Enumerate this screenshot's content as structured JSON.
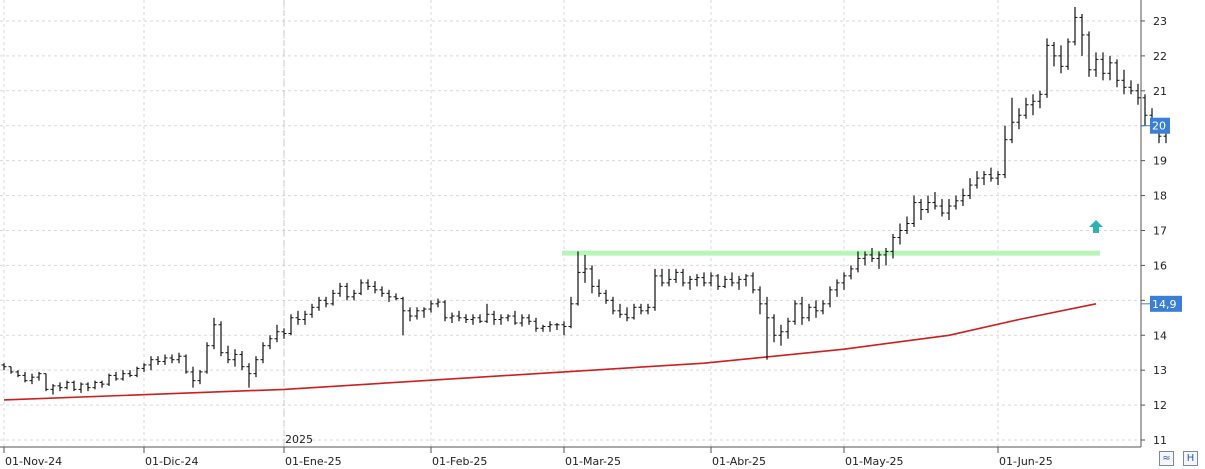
{
  "chart_data": {
    "type": "ohlc",
    "title": "",
    "xlabel": "",
    "ylabel": "",
    "ylim": [
      10.8,
      23.6
    ],
    "y_ticks": [
      11,
      12,
      13,
      14,
      15,
      16,
      17,
      18,
      19,
      20,
      21,
      22,
      23
    ],
    "x_ticks": [
      "01-Nov-24",
      "01-Dic-24",
      "01-Ene-25",
      "01-Feb-25",
      "01-Mar-25",
      "01-Abr-25",
      "01-May-25",
      "01-Jun-25"
    ],
    "year_marker": {
      "label": "2025",
      "at": "01-Ene-25"
    },
    "grid": true,
    "axis_side": "right",
    "price_tags": [
      {
        "label": "20",
        "value": 20.0,
        "color": "#3a7fd5"
      },
      {
        "label": "14,9",
        "value": 14.9,
        "color": "#3a7fd5"
      }
    ],
    "resistance_line": {
      "value": 16.35,
      "from_bar": 80,
      "to_bar": 156,
      "color": "#b8f5b8"
    },
    "moving_average": {
      "color": "#cc1f1f",
      "points": [
        [
          0,
          12.15
        ],
        [
          40,
          12.45
        ],
        [
          80,
          12.95
        ],
        [
          100,
          13.2
        ],
        [
          120,
          13.6
        ],
        [
          135,
          14.0
        ],
        [
          145,
          14.45
        ],
        [
          156,
          14.9
        ]
      ]
    },
    "signal_arrow": {
      "direction": "up",
      "bar": 155,
      "value": 17.1,
      "color": "#2bb3b3"
    },
    "bars": [
      [
        13.15,
        13.2,
        13.0,
        13.1
      ],
      [
        13.1,
        13.1,
        12.9,
        12.95
      ],
      [
        12.95,
        13.0,
        12.8,
        12.85
      ],
      [
        12.85,
        12.95,
        12.65,
        12.7
      ],
      [
        12.7,
        12.9,
        12.6,
        12.8
      ],
      [
        12.8,
        12.95,
        12.7,
        12.9
      ],
      [
        12.9,
        12.9,
        12.4,
        12.45
      ],
      [
        12.45,
        12.6,
        12.3,
        12.55
      ],
      [
        12.55,
        12.65,
        12.4,
        12.5
      ],
      [
        12.5,
        12.7,
        12.45,
        12.65
      ],
      [
        12.65,
        12.7,
        12.4,
        12.45
      ],
      [
        12.45,
        12.65,
        12.35,
        12.6
      ],
      [
        12.6,
        12.65,
        12.4,
        12.5
      ],
      [
        12.5,
        12.7,
        12.45,
        12.65
      ],
      [
        12.65,
        12.7,
        12.5,
        12.6
      ],
      [
        12.6,
        12.9,
        12.55,
        12.85
      ],
      [
        12.85,
        12.95,
        12.7,
        12.75
      ],
      [
        12.75,
        13.0,
        12.7,
        12.9
      ],
      [
        12.9,
        13.0,
        12.8,
        12.85
      ],
      [
        12.85,
        13.1,
        12.8,
        13.05
      ],
      [
        13.05,
        13.2,
        12.95,
        13.15
      ],
      [
        13.15,
        13.4,
        13.0,
        13.3
      ],
      [
        13.3,
        13.4,
        13.15,
        13.25
      ],
      [
        13.25,
        13.45,
        13.15,
        13.35
      ],
      [
        13.35,
        13.45,
        13.2,
        13.3
      ],
      [
        13.3,
        13.5,
        13.2,
        13.4
      ],
      [
        13.4,
        13.45,
        12.9,
        12.95
      ],
      [
        12.95,
        13.1,
        12.5,
        12.7
      ],
      [
        12.7,
        13.0,
        12.6,
        12.95
      ],
      [
        12.95,
        13.8,
        12.9,
        13.7
      ],
      [
        13.7,
        14.5,
        13.6,
        14.3
      ],
      [
        14.3,
        14.4,
        13.4,
        13.5
      ],
      [
        13.5,
        13.7,
        13.2,
        13.3
      ],
      [
        13.3,
        13.6,
        13.1,
        13.45
      ],
      [
        13.45,
        13.55,
        13.0,
        13.1
      ],
      [
        13.1,
        13.2,
        12.5,
        12.9
      ],
      [
        12.9,
        13.4,
        12.8,
        13.3
      ],
      [
        13.3,
        13.8,
        13.2,
        13.7
      ],
      [
        13.7,
        14.0,
        13.6,
        13.9
      ],
      [
        13.9,
        14.3,
        13.8,
        14.1
      ],
      [
        14.1,
        14.2,
        13.9,
        14.05
      ],
      [
        14.05,
        14.6,
        14.0,
        14.5
      ],
      [
        14.5,
        14.7,
        14.3,
        14.45
      ],
      [
        14.45,
        14.7,
        14.3,
        14.6
      ],
      [
        14.6,
        14.9,
        14.5,
        14.8
      ],
      [
        14.8,
        15.1,
        14.7,
        15.0
      ],
      [
        15.0,
        15.1,
        14.8,
        14.9
      ],
      [
        14.9,
        15.3,
        14.85,
        15.2
      ],
      [
        15.2,
        15.5,
        15.1,
        15.4
      ],
      [
        15.4,
        15.5,
        15.0,
        15.1
      ],
      [
        15.1,
        15.3,
        15.0,
        15.2
      ],
      [
        15.2,
        15.6,
        15.15,
        15.5
      ],
      [
        15.5,
        15.6,
        15.3,
        15.4
      ],
      [
        15.4,
        15.55,
        15.2,
        15.3
      ],
      [
        15.3,
        15.4,
        15.1,
        15.2
      ],
      [
        15.2,
        15.3,
        14.95,
        15.1
      ],
      [
        15.1,
        15.2,
        15.0,
        15.05
      ],
      [
        15.05,
        15.1,
        14.0,
        14.7
      ],
      [
        14.7,
        14.8,
        14.4,
        14.55
      ],
      [
        14.55,
        14.8,
        14.45,
        14.7
      ],
      [
        14.7,
        14.8,
        14.5,
        14.75
      ],
      [
        14.75,
        15.0,
        14.65,
        14.9
      ],
      [
        14.9,
        15.05,
        14.8,
        14.95
      ],
      [
        14.95,
        15.0,
        14.4,
        14.5
      ],
      [
        14.5,
        14.65,
        14.35,
        14.55
      ],
      [
        14.55,
        14.7,
        14.4,
        14.5
      ],
      [
        14.5,
        14.6,
        14.35,
        14.45
      ],
      [
        14.45,
        14.6,
        14.3,
        14.5
      ],
      [
        14.5,
        14.6,
        14.35,
        14.4
      ],
      [
        14.4,
        14.9,
        14.35,
        14.6
      ],
      [
        14.6,
        14.7,
        14.3,
        14.45
      ],
      [
        14.45,
        14.6,
        14.3,
        14.5
      ],
      [
        14.5,
        14.6,
        14.4,
        14.55
      ],
      [
        14.55,
        14.7,
        14.3,
        14.35
      ],
      [
        14.35,
        14.6,
        14.25,
        14.5
      ],
      [
        14.5,
        14.6,
        14.3,
        14.4
      ],
      [
        14.4,
        14.5,
        14.1,
        14.2
      ],
      [
        14.2,
        14.3,
        14.1,
        14.25
      ],
      [
        14.25,
        14.4,
        14.1,
        14.3
      ],
      [
        14.3,
        14.35,
        14.15,
        14.3
      ],
      [
        14.3,
        14.4,
        14.0,
        14.25
      ],
      [
        14.25,
        15.1,
        14.2,
        14.9
      ],
      [
        14.9,
        16.4,
        14.85,
        15.8
      ],
      [
        15.8,
        16.3,
        15.5,
        15.9
      ],
      [
        15.9,
        16.0,
        15.2,
        15.4
      ],
      [
        15.4,
        15.6,
        15.1,
        15.2
      ],
      [
        15.2,
        15.3,
        14.9,
        15.0
      ],
      [
        15.0,
        15.1,
        14.6,
        14.7
      ],
      [
        14.7,
        14.9,
        14.5,
        14.6
      ],
      [
        14.6,
        14.8,
        14.4,
        14.5
      ],
      [
        14.5,
        14.9,
        14.45,
        14.8
      ],
      [
        14.8,
        14.9,
        14.6,
        14.7
      ],
      [
        14.7,
        14.9,
        14.6,
        14.8
      ],
      [
        14.8,
        15.9,
        14.7,
        15.7
      ],
      [
        15.7,
        15.9,
        15.4,
        15.5
      ],
      [
        15.5,
        15.9,
        15.4,
        15.6
      ],
      [
        15.6,
        15.9,
        15.5,
        15.8
      ],
      [
        15.8,
        15.9,
        15.4,
        15.5
      ],
      [
        15.5,
        15.7,
        15.3,
        15.6
      ],
      [
        15.6,
        15.75,
        15.4,
        15.65
      ],
      [
        15.65,
        15.8,
        15.4,
        15.5
      ],
      [
        15.5,
        15.8,
        15.4,
        15.7
      ],
      [
        15.7,
        15.75,
        15.3,
        15.4
      ],
      [
        15.4,
        15.7,
        15.35,
        15.6
      ],
      [
        15.6,
        15.8,
        15.4,
        15.5
      ],
      [
        15.5,
        15.7,
        15.3,
        15.6
      ],
      [
        15.6,
        15.75,
        15.4,
        15.7
      ],
      [
        15.7,
        15.8,
        15.2,
        15.3
      ],
      [
        15.3,
        15.4,
        14.6,
        14.9
      ],
      [
        14.9,
        15.1,
        13.3,
        14.5
      ],
      [
        14.5,
        14.6,
        13.8,
        14.0
      ],
      [
        14.0,
        14.3,
        13.7,
        14.1
      ],
      [
        14.1,
        14.5,
        13.9,
        14.4
      ],
      [
        14.4,
        15.0,
        14.3,
        14.9
      ],
      [
        14.9,
        15.1,
        14.3,
        14.5
      ],
      [
        14.5,
        14.9,
        14.4,
        14.8
      ],
      [
        14.8,
        15.0,
        14.5,
        14.7
      ],
      [
        14.7,
        15.0,
        14.6,
        14.9
      ],
      [
        14.9,
        15.4,
        14.8,
        15.3
      ],
      [
        15.3,
        15.6,
        15.1,
        15.5
      ],
      [
        15.5,
        15.8,
        15.3,
        15.7
      ],
      [
        15.7,
        16.0,
        15.6,
        15.9
      ],
      [
        15.9,
        16.4,
        15.8,
        16.2
      ],
      [
        16.2,
        16.4,
        16.0,
        16.3
      ],
      [
        16.3,
        16.5,
        16.1,
        16.2
      ],
      [
        16.2,
        16.4,
        15.9,
        16.3
      ],
      [
        16.3,
        16.5,
        16.0,
        16.4
      ],
      [
        16.4,
        16.9,
        16.2,
        16.8
      ],
      [
        16.8,
        17.2,
        16.6,
        17.0
      ],
      [
        17.0,
        17.4,
        16.9,
        17.2
      ],
      [
        17.2,
        18.0,
        17.1,
        17.8
      ],
      [
        17.8,
        17.9,
        17.3,
        17.6
      ],
      [
        17.6,
        18.0,
        17.5,
        17.8
      ],
      [
        17.8,
        18.1,
        17.6,
        17.7
      ],
      [
        17.7,
        17.9,
        17.4,
        17.5
      ],
      [
        17.5,
        17.9,
        17.3,
        17.7
      ],
      [
        17.7,
        18.0,
        17.6,
        17.85
      ],
      [
        17.85,
        18.2,
        17.7,
        18.0
      ],
      [
        18.0,
        18.5,
        17.9,
        18.3
      ],
      [
        18.3,
        18.7,
        18.2,
        18.5
      ],
      [
        18.5,
        18.7,
        18.3,
        18.6
      ],
      [
        18.6,
        18.8,
        18.4,
        18.5
      ],
      [
        18.5,
        18.7,
        18.3,
        18.6
      ],
      [
        18.6,
        20.0,
        18.5,
        19.6
      ],
      [
        19.6,
        20.8,
        19.5,
        20.1
      ],
      [
        20.1,
        20.5,
        19.9,
        20.3
      ],
      [
        20.3,
        20.8,
        20.2,
        20.6
      ],
      [
        20.6,
        20.9,
        20.3,
        20.7
      ],
      [
        20.7,
        21.0,
        20.5,
        20.9
      ],
      [
        20.9,
        22.5,
        20.8,
        22.3
      ],
      [
        22.3,
        22.4,
        21.7,
        22.0
      ],
      [
        22.0,
        22.3,
        21.5,
        21.7
      ],
      [
        21.7,
        22.5,
        21.6,
        22.4
      ],
      [
        22.4,
        23.4,
        22.3,
        23.1
      ],
      [
        23.1,
        23.2,
        22.0,
        22.6
      ],
      [
        22.6,
        22.7,
        21.4,
        21.6
      ],
      [
        21.6,
        22.1,
        21.4,
        21.9
      ],
      [
        21.9,
        22.1,
        21.3,
        21.5
      ],
      [
        21.5,
        22.0,
        21.3,
        21.8
      ],
      [
        21.8,
        21.9,
        21.1,
        21.3
      ],
      [
        21.3,
        21.6,
        20.9,
        21.1
      ],
      [
        21.1,
        21.3,
        20.9,
        21.0
      ],
      [
        21.0,
        21.2,
        20.6,
        20.8
      ],
      [
        20.8,
        20.9,
        20.0,
        20.3
      ],
      [
        20.3,
        20.5,
        19.8,
        20.0
      ],
      [
        20.0,
        20.2,
        19.5,
        19.7
      ],
      [
        19.7,
        20.0,
        19.5,
        19.9
      ]
    ]
  },
  "controls": {
    "zoom_label": "≈",
    "hscroll_label": "H"
  }
}
